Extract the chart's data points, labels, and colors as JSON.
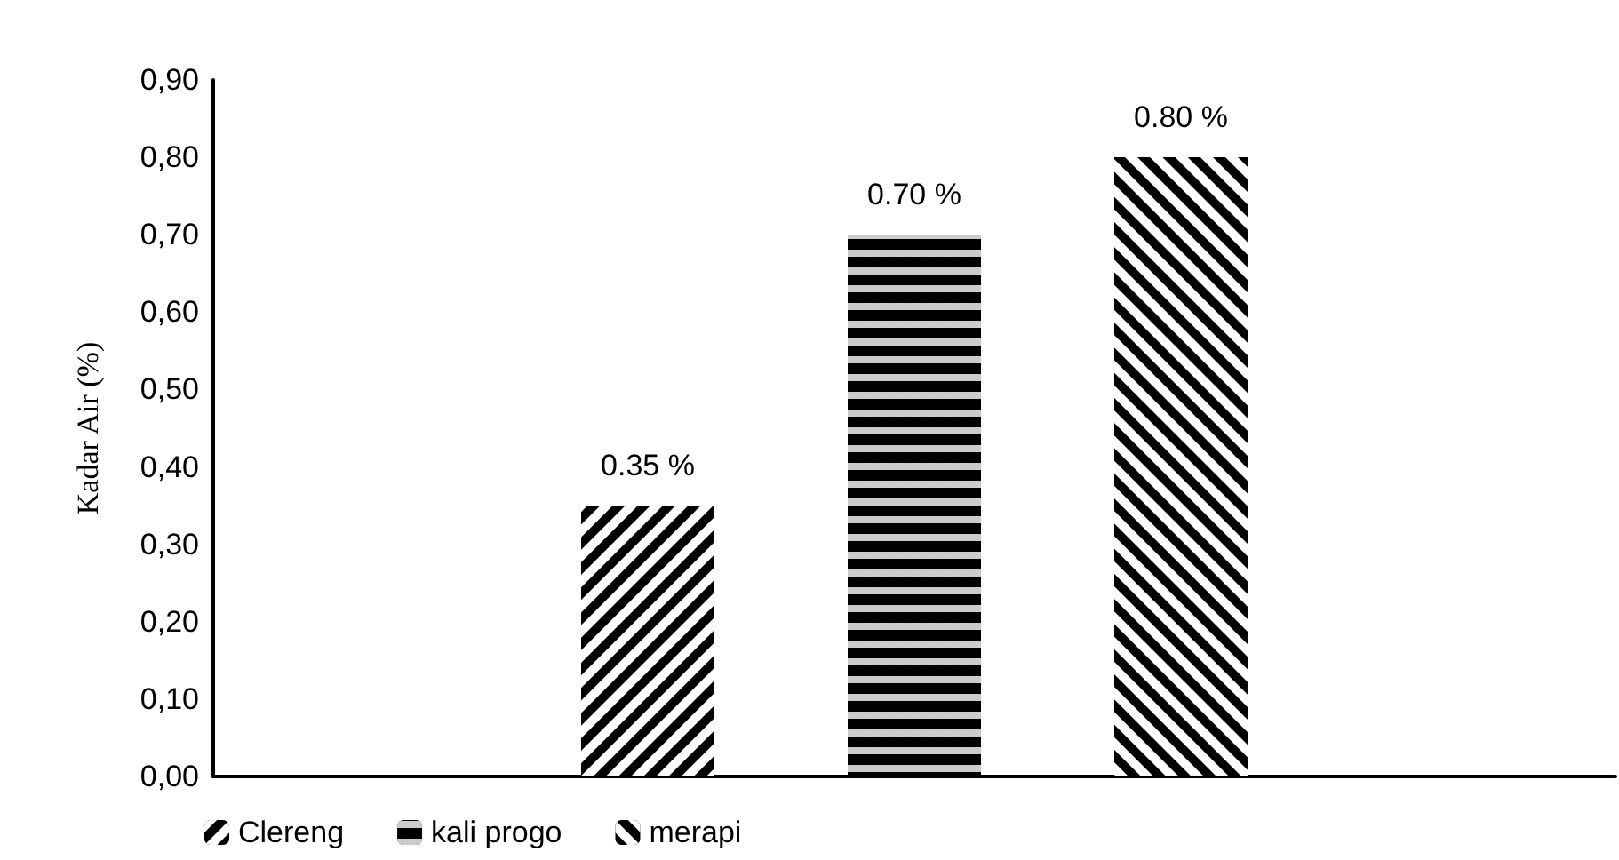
{
  "chart_data": {
    "type": "bar",
    "ylabel": "Kadar Air (%)",
    "categories": [
      null
    ],
    "series": [
      {
        "name": "Clereng",
        "color": "#000000",
        "values": [
          0.35
        ],
        "value_labels": [
          "0.35 %"
        ]
      },
      {
        "name": "kali progo",
        "color": "#000000",
        "values": [
          0.7
        ],
        "value_labels": [
          "0.70 %"
        ]
      },
      {
        "name": "merapi",
        "color": "#000000",
        "values": [
          0.8
        ],
        "value_labels": [
          "0.80 %"
        ]
      }
    ],
    "ylim": [
      0,
      0.9
    ],
    "yticks": [
      {
        "value": 0,
        "label": "0,00"
      },
      {
        "value": 0.1,
        "label": "0,10"
      },
      {
        "value": 0.2,
        "label": "0,20"
      },
      {
        "value": 0.3,
        "label": "0,30"
      },
      {
        "value": 0.4,
        "label": "0,40"
      },
      {
        "value": 0.5,
        "label": "0,50"
      },
      {
        "value": 0.6,
        "label": "0,60"
      },
      {
        "value": 0.7,
        "label": "0,70"
      },
      {
        "value": 0.8,
        "label": "0,80"
      },
      {
        "value": 0.9,
        "label": "0,90"
      }
    ],
    "grid": false,
    "legend": "bottom left"
  }
}
